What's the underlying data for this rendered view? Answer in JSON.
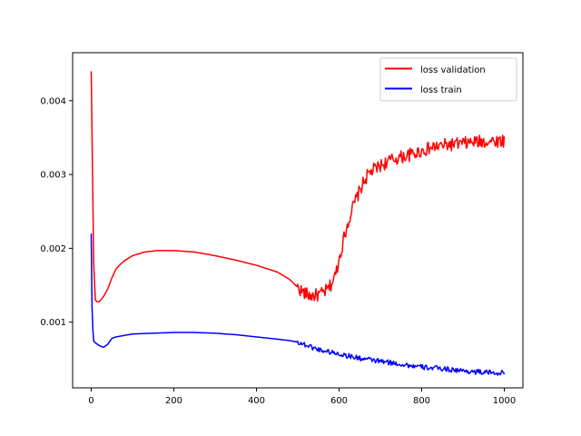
{
  "chart_data": {
    "type": "line",
    "title": "",
    "xlabel": "",
    "ylabel": "",
    "xlim": [
      -45,
      1045
    ],
    "ylim": [
      0.00011,
      0.00465
    ],
    "xticks": [
      0,
      200,
      400,
      600,
      800,
      1000
    ],
    "xtick_labels": [
      "0",
      "200",
      "400",
      "600",
      "800",
      "1000"
    ],
    "yticks": [
      0.001,
      0.002,
      0.003,
      0.004
    ],
    "ytick_labels": [
      "0.001",
      "0.002",
      "0.003",
      "0.004"
    ],
    "legend_position": "top-right",
    "grid": false,
    "series": [
      {
        "name": "loss validation",
        "label": "loss validation",
        "color": "#ff0000",
        "noise_start": 500,
        "noise_amplitude": 9e-05,
        "x": [
          0,
          3,
          6,
          10,
          15,
          20,
          30,
          40,
          50,
          60,
          70,
          80,
          100,
          130,
          160,
          200,
          250,
          300,
          350,
          400,
          450,
          480,
          500,
          510,
          520,
          530,
          540,
          550,
          560,
          570,
          580,
          590,
          600,
          610,
          620,
          630,
          640,
          650,
          660,
          670,
          680,
          690,
          700,
          720,
          740,
          760,
          780,
          800,
          830,
          860,
          900,
          930,
          960,
          1000
        ],
        "y": [
          0.0044,
          0.0031,
          0.0018,
          0.0013,
          0.00127,
          0.00128,
          0.00135,
          0.00145,
          0.0016,
          0.00172,
          0.00178,
          0.00183,
          0.0019,
          0.00195,
          0.00197,
          0.00197,
          0.00195,
          0.0019,
          0.00184,
          0.00177,
          0.00168,
          0.00158,
          0.00147,
          0.00142,
          0.00138,
          0.00136,
          0.00136,
          0.00137,
          0.00139,
          0.00143,
          0.0015,
          0.00162,
          0.00185,
          0.0021,
          0.00232,
          0.0025,
          0.00265,
          0.00278,
          0.0029,
          0.003,
          0.00305,
          0.00308,
          0.00312,
          0.00318,
          0.00322,
          0.00325,
          0.00328,
          0.00332,
          0.00337,
          0.0034,
          0.00342,
          0.00344,
          0.00345,
          0.00346
        ]
      },
      {
        "name": "loss train",
        "label": "loss train",
        "color": "#0000ff",
        "noise_start": 500,
        "noise_amplitude": 3.5e-05,
        "x": [
          0,
          2,
          5,
          10,
          20,
          30,
          40,
          50,
          60,
          70,
          80,
          100,
          150,
          200,
          250,
          300,
          350,
          400,
          450,
          480,
          500,
          550,
          600,
          650,
          700,
          750,
          800,
          850,
          900,
          950,
          1000
        ],
        "y": [
          0.0022,
          0.0012,
          0.00075,
          0.00072,
          0.00068,
          0.00066,
          0.0007,
          0.00078,
          0.0008,
          0.00081,
          0.00082,
          0.00084,
          0.00085,
          0.00086,
          0.00086,
          0.00085,
          0.00083,
          0.0008,
          0.00077,
          0.00075,
          0.00073,
          0.00063,
          0.00057,
          0.00051,
          0.00047,
          0.00043,
          0.00039,
          0.00037,
          0.00034,
          0.00032,
          0.00031
        ]
      }
    ]
  }
}
